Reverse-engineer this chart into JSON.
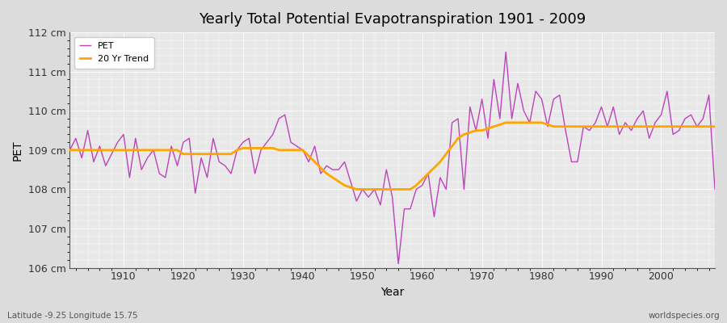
{
  "title": "Yearly Total Potential Evapotranspiration 1901 - 2009",
  "xlabel": "Year",
  "ylabel": "PET",
  "subtitle_left": "Latitude -9.25 Longitude 15.75",
  "subtitle_right": "worldspecies.org",
  "ylim": [
    106,
    112
  ],
  "yticks": [
    106,
    107,
    108,
    109,
    110,
    111,
    112
  ],
  "ytick_labels": [
    "106 cm",
    "107 cm",
    "108 cm",
    "109 cm",
    "110 cm",
    "111 cm",
    "112 cm"
  ],
  "xticks": [
    1910,
    1920,
    1930,
    1940,
    1950,
    1960,
    1970,
    1980,
    1990,
    2000
  ],
  "pet_color": "#bb44bb",
  "trend_color": "#ffa500",
  "bg_outer": "#dcdcdc",
  "plot_bg_color": "#e8e8e8",
  "legend_pet": "PET",
  "legend_trend": "20 Yr Trend",
  "years": [
    1901,
    1902,
    1903,
    1904,
    1905,
    1906,
    1907,
    1908,
    1909,
    1910,
    1911,
    1912,
    1913,
    1914,
    1915,
    1916,
    1917,
    1918,
    1919,
    1920,
    1921,
    1922,
    1923,
    1924,
    1925,
    1926,
    1927,
    1928,
    1929,
    1930,
    1931,
    1932,
    1933,
    1934,
    1935,
    1936,
    1937,
    1938,
    1939,
    1940,
    1941,
    1942,
    1943,
    1944,
    1945,
    1946,
    1947,
    1948,
    1949,
    1950,
    1951,
    1952,
    1953,
    1954,
    1955,
    1956,
    1957,
    1958,
    1959,
    1960,
    1961,
    1962,
    1963,
    1964,
    1965,
    1966,
    1967,
    1968,
    1969,
    1970,
    1971,
    1972,
    1973,
    1974,
    1975,
    1976,
    1977,
    1978,
    1979,
    1980,
    1981,
    1982,
    1983,
    1984,
    1985,
    1986,
    1987,
    1988,
    1989,
    1990,
    1991,
    1992,
    1993,
    1994,
    1995,
    1996,
    1997,
    1998,
    1999,
    2000,
    2001,
    2002,
    2003,
    2004,
    2005,
    2006,
    2007,
    2008,
    2009
  ],
  "pet_values": [
    109.0,
    109.3,
    108.8,
    109.5,
    108.7,
    109.1,
    108.6,
    108.9,
    109.2,
    109.4,
    108.3,
    109.3,
    108.5,
    108.8,
    109.0,
    108.4,
    108.3,
    109.1,
    108.6,
    109.2,
    109.3,
    107.9,
    108.8,
    108.3,
    109.3,
    108.7,
    108.6,
    108.4,
    109.0,
    109.2,
    109.3,
    108.4,
    109.0,
    109.2,
    109.4,
    109.8,
    109.9,
    109.2,
    109.1,
    109.0,
    108.7,
    109.1,
    108.4,
    108.6,
    108.5,
    108.5,
    108.7,
    108.2,
    107.7,
    108.0,
    107.8,
    108.0,
    107.6,
    108.5,
    107.8,
    106.1,
    107.5,
    107.5,
    108.0,
    108.1,
    108.4,
    107.3,
    108.3,
    108.0,
    109.7,
    109.8,
    108.0,
    110.1,
    109.5,
    110.3,
    109.3,
    110.8,
    109.8,
    111.5,
    109.8,
    110.7,
    110.0,
    109.7,
    110.5,
    110.3,
    109.6,
    110.3,
    110.4,
    109.5,
    108.7,
    108.7,
    109.6,
    109.5,
    109.7,
    110.1,
    109.6,
    110.1,
    109.4,
    109.7,
    109.5,
    109.8,
    110.0,
    109.3,
    109.7,
    109.9,
    110.5,
    109.4,
    109.5,
    109.8,
    109.9,
    109.6,
    109.8,
    110.4,
    108.0
  ],
  "trend_years": [
    1901,
    1902,
    1903,
    1904,
    1905,
    1906,
    1907,
    1908,
    1909,
    1910,
    1911,
    1912,
    1913,
    1914,
    1915,
    1916,
    1917,
    1918,
    1919,
    1920,
    1921,
    1922,
    1923,
    1924,
    1925,
    1926,
    1927,
    1928,
    1929,
    1930,
    1931,
    1932,
    1933,
    1934,
    1935,
    1936,
    1937,
    1938,
    1939,
    1940,
    1941,
    1942,
    1943,
    1944,
    1945,
    1946,
    1947,
    1948,
    1949,
    1950,
    1951,
    1952,
    1953,
    1954,
    1955,
    1956,
    1957,
    1958,
    1959,
    1960,
    1961,
    1962,
    1963,
    1964,
    1965,
    1966,
    1967,
    1968,
    1969,
    1970,
    1971,
    1972,
    1973,
    1974,
    1975,
    1976,
    1977,
    1978,
    1979,
    1980,
    1981,
    1982,
    1983,
    1984,
    1985,
    1986,
    1987,
    1988,
    1989,
    1990,
    1991,
    1992,
    1993,
    1994,
    1995,
    1996,
    1997,
    1998,
    1999,
    2000,
    2001,
    2002,
    2003,
    2004,
    2005,
    2006,
    2007,
    2008,
    2009
  ],
  "trend_values": [
    109.0,
    109.0,
    109.0,
    109.0,
    109.0,
    109.0,
    109.0,
    109.0,
    109.0,
    109.0,
    109.0,
    109.0,
    109.0,
    109.0,
    109.0,
    109.0,
    109.0,
    109.0,
    109.0,
    108.9,
    108.9,
    108.9,
    108.9,
    108.9,
    108.9,
    108.9,
    108.9,
    108.9,
    109.0,
    109.05,
    109.05,
    109.05,
    109.05,
    109.05,
    109.05,
    109.0,
    109.0,
    109.0,
    109.0,
    109.0,
    108.85,
    108.7,
    108.55,
    108.4,
    108.3,
    108.2,
    108.1,
    108.05,
    108.0,
    108.0,
    108.0,
    108.0,
    108.0,
    108.0,
    108.0,
    108.0,
    108.0,
    108.0,
    108.1,
    108.25,
    108.4,
    108.55,
    108.7,
    108.9,
    109.1,
    109.3,
    109.4,
    109.45,
    109.5,
    109.5,
    109.55,
    109.6,
    109.65,
    109.7,
    109.7,
    109.7,
    109.7,
    109.7,
    109.7,
    109.7,
    109.65,
    109.6,
    109.6,
    109.6,
    109.6,
    109.6,
    109.6,
    109.6,
    109.6,
    109.6,
    109.6,
    109.6,
    109.6,
    109.6,
    109.6,
    109.6,
    109.6,
    109.6,
    109.6,
    109.6,
    109.6,
    109.6,
    109.6,
    109.6,
    109.6,
    109.6,
    109.6,
    109.6,
    109.6
  ]
}
